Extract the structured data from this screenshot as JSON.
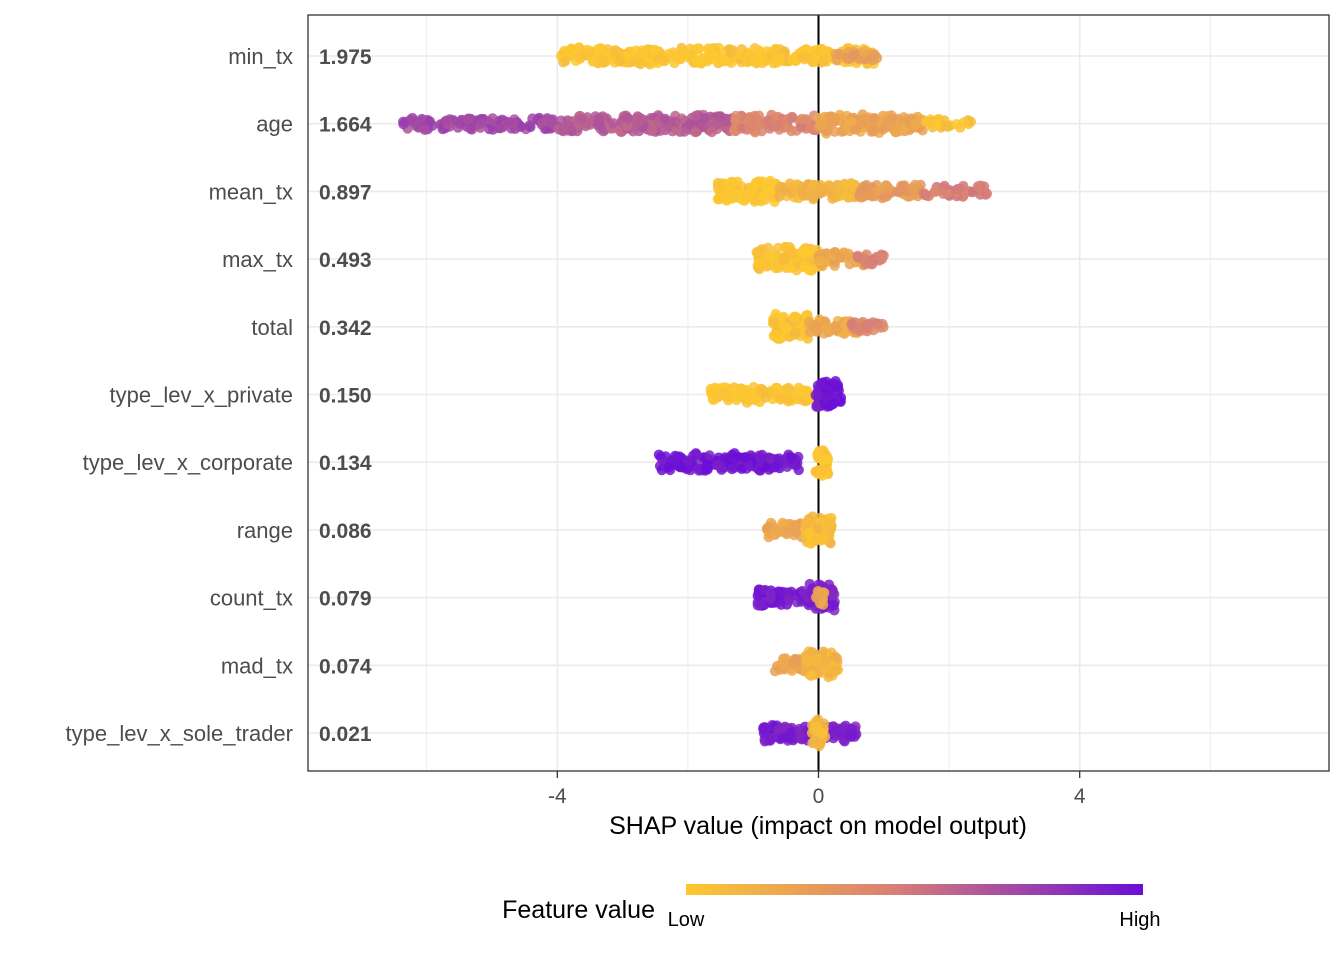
{
  "chart_data": {
    "type": "scatter",
    "subtype": "shap-beeswarm",
    "xlabel": "SHAP value (impact on model output)",
    "xlim": [
      -7.8,
      7.8
    ],
    "xticks": [
      -4,
      0,
      4
    ],
    "grid": true,
    "zero_line": true,
    "legend": {
      "title": "Feature value",
      "low_label": "Low",
      "high_label": "High",
      "placement": "bottom",
      "low_color": "#fdc82f",
      "mid_color": "#d88075",
      "high_color": "#6a0ed8"
    },
    "features": [
      {
        "name": "min_tx",
        "mean_abs_shap": "1.975",
        "segments": [
          {
            "from": -3.95,
            "to": 0.9,
            "color_value": 0.03,
            "weight": 1.0
          },
          {
            "from": 0.2,
            "to": 0.9,
            "color_value": 0.25,
            "weight": 0.3
          }
        ]
      },
      {
        "name": "age",
        "mean_abs_shap": "1.664",
        "segments": [
          {
            "from": -6.4,
            "to": -4.0,
            "color_value": 0.72,
            "weight": 0.6
          },
          {
            "from": -4.0,
            "to": -1.3,
            "color_value": 0.62,
            "weight": 1.0
          },
          {
            "from": -1.3,
            "to": 0.0,
            "color_value": 0.42,
            "weight": 1.0
          },
          {
            "from": 0.0,
            "to": 1.6,
            "color_value": 0.22,
            "weight": 1.2
          },
          {
            "from": 1.6,
            "to": 2.35,
            "color_value": 0.05,
            "weight": 0.3
          }
        ]
      },
      {
        "name": "mean_tx",
        "mean_abs_shap": "0.897",
        "segments": [
          {
            "from": -1.55,
            "to": -0.6,
            "color_value": 0.02,
            "weight": 1.4
          },
          {
            "from": -0.6,
            "to": 0.6,
            "color_value": 0.12,
            "weight": 1.0
          },
          {
            "from": 0.6,
            "to": 1.6,
            "color_value": 0.28,
            "weight": 0.7
          },
          {
            "from": 1.6,
            "to": 2.6,
            "color_value": 0.45,
            "weight": 0.5
          }
        ]
      },
      {
        "name": "max_tx",
        "mean_abs_shap": "0.493",
        "segments": [
          {
            "from": -0.95,
            "to": 0.0,
            "color_value": 0.03,
            "weight": 1.6
          },
          {
            "from": 0.0,
            "to": 0.7,
            "color_value": 0.2,
            "weight": 0.8
          },
          {
            "from": 0.6,
            "to": 1.0,
            "color_value": 0.45,
            "weight": 0.5
          }
        ]
      },
      {
        "name": "total",
        "mean_abs_shap": "0.342",
        "segments": [
          {
            "from": -0.7,
            "to": -0.15,
            "color_value": 0.03,
            "weight": 2.0
          },
          {
            "from": -0.15,
            "to": 0.6,
            "color_value": 0.2,
            "weight": 0.8
          },
          {
            "from": 0.5,
            "to": 1.0,
            "color_value": 0.42,
            "weight": 0.5
          }
        ]
      },
      {
        "name": "type_lev_x_private",
        "mean_abs_shap": "0.150",
        "segments": [
          {
            "from": -1.65,
            "to": 0.0,
            "color_value": 0.02,
            "weight": 0.9
          },
          {
            "from": -0.05,
            "to": 0.35,
            "color_value": 0.97,
            "weight": 2.2
          }
        ]
      },
      {
        "name": "type_lev_x_corporate",
        "mean_abs_shap": "0.134",
        "segments": [
          {
            "from": -2.45,
            "to": -0.3,
            "color_value": 0.96,
            "weight": 1.0
          },
          {
            "from": -0.05,
            "to": 0.15,
            "color_value": 0.02,
            "weight": 2.2
          }
        ]
      },
      {
        "name": "range",
        "mean_abs_shap": "0.086",
        "segments": [
          {
            "from": -0.8,
            "to": -0.2,
            "color_value": 0.2,
            "weight": 0.8
          },
          {
            "from": -0.2,
            "to": 0.2,
            "color_value": 0.08,
            "weight": 2.2
          }
        ]
      },
      {
        "name": "count_tx",
        "mean_abs_shap": "0.079",
        "segments": [
          {
            "from": -0.95,
            "to": -0.1,
            "color_value": 0.95,
            "weight": 1.0
          },
          {
            "from": -0.15,
            "to": 0.25,
            "color_value": 0.9,
            "weight": 2.0
          },
          {
            "from": -0.05,
            "to": 0.1,
            "color_value": 0.25,
            "weight": 0.8
          }
        ]
      },
      {
        "name": "mad_tx",
        "mean_abs_shap": "0.074",
        "segments": [
          {
            "from": -0.7,
            "to": -0.2,
            "color_value": 0.22,
            "weight": 0.7
          },
          {
            "from": -0.2,
            "to": 0.3,
            "color_value": 0.12,
            "weight": 2.0
          }
        ]
      },
      {
        "name": "type_lev_x_sole_trader",
        "mean_abs_shap": "0.021",
        "segments": [
          {
            "from": -0.85,
            "to": 0.6,
            "color_value": 0.92,
            "weight": 1.0
          },
          {
            "from": -0.1,
            "to": 0.1,
            "color_value": 0.1,
            "weight": 2.0
          }
        ]
      }
    ]
  }
}
